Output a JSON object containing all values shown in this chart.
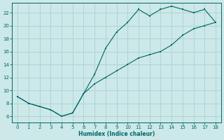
{
  "xlabel": "Humidex (Indice chaleur)",
  "bg_color": "#cce8e8",
  "line_color": "#006666",
  "grid_color": "#b0d4d4",
  "curve1_x": [
    0,
    1,
    2,
    3,
    4,
    5,
    6,
    7,
    8,
    9,
    10,
    11,
    12,
    13,
    14,
    15,
    16,
    17,
    18
  ],
  "curve1_y": [
    9,
    8,
    7.5,
    7,
    6,
    6.5,
    9.5,
    12.5,
    16.5,
    19,
    20.5,
    22.5,
    21.5,
    22.5,
    23,
    22.5,
    22,
    22.5,
    20.5
  ],
  "curve2_x": [
    0,
    1,
    2,
    3,
    4,
    5,
    6,
    7,
    8,
    9,
    10,
    11,
    12,
    13,
    14,
    15,
    16,
    17,
    18
  ],
  "curve2_y": [
    9,
    8,
    7.5,
    7,
    6,
    6.5,
    9.5,
    11,
    12,
    13,
    14,
    15,
    15.5,
    16,
    17,
    18.5,
    19.5,
    20,
    20.5
  ],
  "xlim": [
    -0.5,
    18.5
  ],
  "ylim": [
    5.0,
    23.5
  ],
  "xticks": [
    0,
    1,
    2,
    3,
    4,
    5,
    6,
    7,
    8,
    9,
    10,
    11,
    12,
    13,
    14,
    15,
    16,
    17,
    18
  ],
  "yticks": [
    6,
    8,
    10,
    12,
    14,
    16,
    18,
    20,
    22
  ]
}
